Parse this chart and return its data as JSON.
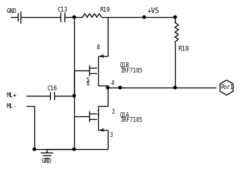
{
  "bg_color": "#ffffff",
  "line_color": "#000000",
  "line_width": 1.0,
  "font_size": 6.5,
  "font_family": "monospace",
  "labels": {
    "GND_top": "GND",
    "C13": "C13",
    "R19": "R19",
    "VS": "+VS",
    "R18": "R18",
    "Q1B": "Q1B",
    "IRF7105_B": "IRF7105",
    "Q1A": "Q1A",
    "IRF7105_A": "IRF7105",
    "ML_plus": "ML+",
    "ML_minus": "ML-",
    "C16": "C16",
    "GND_bot": "GND",
    "Por1": "Por1",
    "pin8": "8",
    "pin4": "4",
    "pin5": "5",
    "pin6": "6",
    "pin1": "1",
    "pin2": "2",
    "pin3": "3"
  }
}
